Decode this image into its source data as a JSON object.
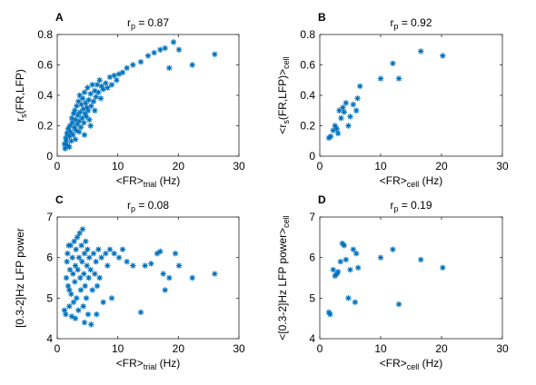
{
  "figure": {
    "marker_color": "#0072BD",
    "marker": "asterisk"
  },
  "chart_data": [
    {
      "panel": "A",
      "type": "scatter",
      "title": {
        "main": "r",
        "sub": "p",
        "rest": " = 0.87"
      },
      "xlabel": {
        "pre": "<FR>",
        "sub": "trial",
        "post": " (Hz)"
      },
      "ylabel": {
        "pre": "r",
        "sub": "s",
        "post": "(FR,LFP)"
      },
      "xlim": [
        0,
        30
      ],
      "ylim": [
        0,
        0.8
      ],
      "xticks": [
        0,
        10,
        20,
        30
      ],
      "yticks": [
        0,
        0.2,
        0.4,
        0.6,
        0.8
      ],
      "xticklabels": [
        "0",
        "10",
        "20",
        "30"
      ],
      "yticklabels": [
        "0",
        "0.2",
        "0.4",
        "0.6",
        "0.8"
      ],
      "points": [
        [
          1.2,
          0.08
        ],
        [
          1.4,
          0.12
        ],
        [
          1.5,
          0.1
        ],
        [
          1.6,
          0.15
        ],
        [
          1.7,
          0.07
        ],
        [
          1.8,
          0.18
        ],
        [
          2.0,
          0.13
        ],
        [
          2.1,
          0.2
        ],
        [
          2.2,
          0.16
        ],
        [
          2.3,
          0.1
        ],
        [
          2.4,
          0.25
        ],
        [
          2.5,
          0.22
        ],
        [
          2.6,
          0.14
        ],
        [
          2.7,
          0.28
        ],
        [
          2.8,
          0.19
        ],
        [
          2.9,
          0.3
        ],
        [
          3.0,
          0.24
        ],
        [
          3.1,
          0.17
        ],
        [
          3.2,
          0.33
        ],
        [
          3.3,
          0.21
        ],
        [
          3.4,
          0.27
        ],
        [
          3.5,
          0.36
        ],
        [
          3.6,
          0.23
        ],
        [
          3.7,
          0.4
        ],
        [
          3.8,
          0.29
        ],
        [
          3.9,
          0.19
        ],
        [
          4.0,
          0.34
        ],
        [
          4.1,
          0.25
        ],
        [
          4.2,
          0.38
        ],
        [
          4.3,
          0.31
        ],
        [
          4.4,
          0.22
        ],
        [
          4.5,
          0.42
        ],
        [
          4.6,
          0.28
        ],
        [
          4.7,
          0.35
        ],
        [
          4.8,
          0.26
        ],
        [
          4.9,
          0.32
        ],
        [
          5.0,
          0.45
        ],
        [
          5.1,
          0.3
        ],
        [
          5.2,
          0.37
        ],
        [
          5.3,
          0.24
        ],
        [
          5.5,
          0.41
        ],
        [
          5.6,
          0.33
        ],
        [
          5.8,
          0.47
        ],
        [
          6.0,
          0.36
        ],
        [
          6.2,
          0.43
        ],
        [
          6.4,
          0.39
        ],
        [
          6.6,
          0.47
        ],
        [
          6.8,
          0.42
        ],
        [
          7.0,
          0.5
        ],
        [
          7.3,
          0.46
        ],
        [
          7.6,
          0.44
        ],
        [
          8.0,
          0.48
        ],
        [
          8.3,
          0.45
        ],
        [
          8.7,
          0.52
        ],
        [
          9.0,
          0.47
        ],
        [
          9.4,
          0.53
        ],
        [
          9.8,
          0.5
        ],
        [
          10.2,
          0.54
        ],
        [
          10.8,
          0.55
        ],
        [
          11.5,
          0.58
        ],
        [
          12.5,
          0.6
        ],
        [
          13.8,
          0.62
        ],
        [
          15.0,
          0.66
        ],
        [
          16.0,
          0.68
        ],
        [
          17.0,
          0.7
        ],
        [
          17.8,
          0.71
        ],
        [
          18.5,
          0.58
        ],
        [
          19.2,
          0.75
        ],
        [
          20.1,
          0.7
        ],
        [
          22.3,
          0.6
        ],
        [
          26.0,
          0.67
        ],
        [
          1.3,
          0.05
        ],
        [
          2.0,
          0.06
        ],
        [
          3.0,
          0.11
        ],
        [
          4.5,
          0.14
        ],
        [
          5.5,
          0.2
        ],
        [
          6.2,
          0.3
        ],
        [
          7.2,
          0.38
        ],
        [
          3.6,
          0.16
        ]
      ]
    },
    {
      "panel": "B",
      "type": "scatter",
      "title": {
        "main": "r",
        "sub": "p",
        "rest": " = 0.92"
      },
      "xlabel": {
        "pre": "<FR>",
        "sub": "cell",
        "post": " (Hz)"
      },
      "ylabel": {
        "pre": "<r",
        "sub": "s",
        "post": "(FR,LFP)>",
        "sub2": "cell"
      },
      "xlim": [
        0,
        30
      ],
      "ylim": [
        0,
        0.8
      ],
      "xticks": [
        0,
        10,
        20,
        30
      ],
      "yticks": [
        0,
        0.2,
        0.4,
        0.6,
        0.8
      ],
      "xticklabels": [
        "0",
        "10",
        "20",
        "30"
      ],
      "yticklabels": [
        "0",
        "0.2",
        "0.4",
        "0.6",
        "0.8"
      ],
      "points": [
        [
          1.5,
          0.12
        ],
        [
          1.8,
          0.13
        ],
        [
          2.2,
          0.17
        ],
        [
          2.5,
          0.2
        ],
        [
          3.0,
          0.15
        ],
        [
          3.2,
          0.3
        ],
        [
          3.5,
          0.25
        ],
        [
          3.8,
          0.32
        ],
        [
          4.0,
          0.29
        ],
        [
          4.3,
          0.35
        ],
        [
          4.7,
          0.2
        ],
        [
          5.0,
          0.26
        ],
        [
          5.5,
          0.34
        ],
        [
          6.0,
          0.3
        ],
        [
          6.2,
          0.38
        ],
        [
          6.6,
          0.46
        ],
        [
          10.0,
          0.51
        ],
        [
          12.0,
          0.61
        ],
        [
          13.0,
          0.51
        ],
        [
          16.6,
          0.69
        ],
        [
          20.2,
          0.66
        ],
        [
          2.8,
          0.18
        ]
      ]
    },
    {
      "panel": "C",
      "type": "scatter",
      "title": {
        "main": "r",
        "sub": "p",
        "rest": " = 0.08"
      },
      "xlabel": {
        "pre": "<FR>",
        "sub": "trial",
        "post": " (Hz)"
      },
      "ylabel": {
        "pre": "[0.3-2]Hz LFP power",
        "sub": "",
        "post": ""
      },
      "xlim": [
        0,
        30
      ],
      "ylim": [
        4,
        7
      ],
      "xticks": [
        0,
        10,
        20,
        30
      ],
      "yticks": [
        4,
        5,
        6,
        7
      ],
      "xticklabels": [
        "0",
        "10",
        "20",
        "30"
      ],
      "yticklabels": [
        "4",
        "5",
        "6",
        "7"
      ],
      "points": [
        [
          1.2,
          4.7
        ],
        [
          1.4,
          4.6
        ],
        [
          1.5,
          5.5
        ],
        [
          1.6,
          5.9
        ],
        [
          1.7,
          6.1
        ],
        [
          1.8,
          5.3
        ],
        [
          2.0,
          4.8
        ],
        [
          2.1,
          5.7
        ],
        [
          2.2,
          6.3
        ],
        [
          2.3,
          5.1
        ],
        [
          2.4,
          4.55
        ],
        [
          2.5,
          6.0
        ],
        [
          2.6,
          5.6
        ],
        [
          2.7,
          4.9
        ],
        [
          2.8,
          6.4
        ],
        [
          2.9,
          5.4
        ],
        [
          3.0,
          5.8
        ],
        [
          3.1,
          6.2
        ],
        [
          3.2,
          5.0
        ],
        [
          3.3,
          6.5
        ],
        [
          3.4,
          5.7
        ],
        [
          3.5,
          4.7
        ],
        [
          3.6,
          6.0
        ],
        [
          3.7,
          6.6
        ],
        [
          3.8,
          5.5
        ],
        [
          3.9,
          5.2
        ],
        [
          4.0,
          6.3
        ],
        [
          4.1,
          5.9
        ],
        [
          4.2,
          6.7
        ],
        [
          4.3,
          4.8
        ],
        [
          4.4,
          5.6
        ],
        [
          4.5,
          6.1
        ],
        [
          4.6,
          5.3
        ],
        [
          4.7,
          6.4
        ],
        [
          4.8,
          5.0
        ],
        [
          4.9,
          5.8
        ],
        [
          5.0,
          6.2
        ],
        [
          5.1,
          4.6
        ],
        [
          5.2,
          5.5
        ],
        [
          5.3,
          6.0
        ],
        [
          5.5,
          5.7
        ],
        [
          5.6,
          4.35
        ],
        [
          5.8,
          5.2
        ],
        [
          6.0,
          6.1
        ],
        [
          6.2,
          5.6
        ],
        [
          6.4,
          5.9
        ],
        [
          6.6,
          5.3
        ],
        [
          6.8,
          6.2
        ],
        [
          7.0,
          5.5
        ],
        [
          7.3,
          6.0
        ],
        [
          7.6,
          4.9
        ],
        [
          8.0,
          6.1
        ],
        [
          8.3,
          5.8
        ],
        [
          8.7,
          6.2
        ],
        [
          9.0,
          5.0
        ],
        [
          9.4,
          6.1
        ],
        [
          10.2,
          6.0
        ],
        [
          10.8,
          6.2
        ],
        [
          11.5,
          5.9
        ],
        [
          12.5,
          5.8
        ],
        [
          13.8,
          4.65
        ],
        [
          14.5,
          5.8
        ],
        [
          15.5,
          5.85
        ],
        [
          16.5,
          6.1
        ],
        [
          17.0,
          6.15
        ],
        [
          17.5,
          5.6
        ],
        [
          17.8,
          5.2
        ],
        [
          18.5,
          5.5
        ],
        [
          19.5,
          6.1
        ],
        [
          20.1,
          5.8
        ],
        [
          22.3,
          5.5
        ],
        [
          26.0,
          5.6
        ],
        [
          3.0,
          4.5
        ],
        [
          4.5,
          4.4
        ],
        [
          6.5,
          4.6
        ],
        [
          2.0,
          5.2
        ],
        [
          1.9,
          6.3
        ]
      ]
    },
    {
      "panel": "D",
      "type": "scatter",
      "title": {
        "main": "r",
        "sub": "p",
        "rest": " = 0.19"
      },
      "xlabel": {
        "pre": "<FR>",
        "sub": "cell",
        "post": " (Hz)"
      },
      "ylabel": {
        "pre": "<[0.3-2]Hz LFP power>",
        "sub": "cell",
        "post": ""
      },
      "xlim": [
        0,
        30
      ],
      "ylim": [
        4,
        7
      ],
      "xticks": [
        0,
        10,
        20,
        30
      ],
      "yticks": [
        4,
        5,
        6,
        7
      ],
      "xticklabels": [
        "0",
        "10",
        "20",
        "30"
      ],
      "yticklabels": [
        "4",
        "5",
        "6",
        "7"
      ],
      "points": [
        [
          1.5,
          4.65
        ],
        [
          1.7,
          4.6
        ],
        [
          2.2,
          5.7
        ],
        [
          2.5,
          5.55
        ],
        [
          2.8,
          5.6
        ],
        [
          3.0,
          5.65
        ],
        [
          3.4,
          5.9
        ],
        [
          3.7,
          6.35
        ],
        [
          4.0,
          6.3
        ],
        [
          4.3,
          5.95
        ],
        [
          4.7,
          5.0
        ],
        [
          5.0,
          5.7
        ],
        [
          5.5,
          6.2
        ],
        [
          5.8,
          4.9
        ],
        [
          6.0,
          6.1
        ],
        [
          6.3,
          5.75
        ],
        [
          10.0,
          6.0
        ],
        [
          12.0,
          6.2
        ],
        [
          13.0,
          4.85
        ],
        [
          16.6,
          5.95
        ],
        [
          20.2,
          5.75
        ]
      ]
    }
  ]
}
